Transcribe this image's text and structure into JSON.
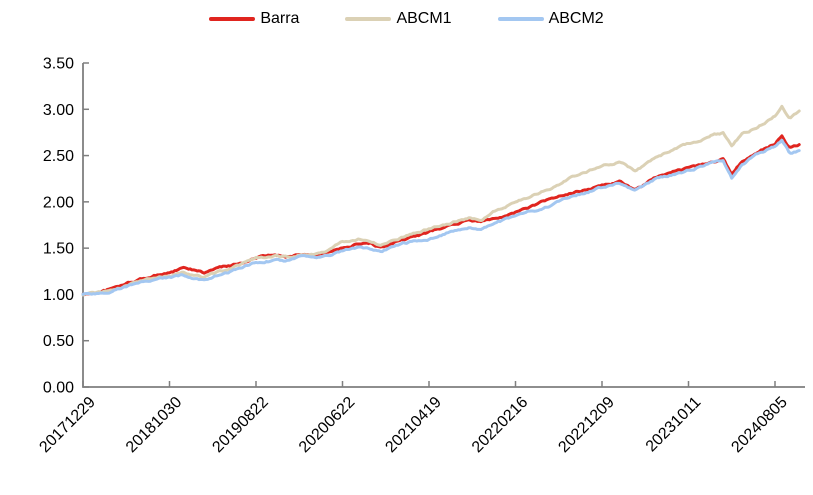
{
  "legend": {
    "items": [
      {
        "label": "Barra",
        "color": "#e0251f"
      },
      {
        "label": "ABCM1",
        "color": "#dbd1b5"
      },
      {
        "label": "ABCM2",
        "color": "#a3c7f1"
      }
    ],
    "position": "top-center"
  },
  "axis": {
    "color": "#7f7f7f",
    "tick_length": 6,
    "label_color": "#000000"
  },
  "chart_data": {
    "type": "line",
    "title": "",
    "xlabel": "",
    "ylabel": "",
    "ylim": [
      0,
      3.5
    ],
    "xlim": [
      0,
      8.35
    ],
    "grid": false,
    "legend_position": "top-center",
    "y_tick_values": [
      0.0,
      0.5,
      1.0,
      1.5,
      2.0,
      2.5,
      3.0,
      3.5
    ],
    "y_tick_labels": [
      "0.00",
      "0.50",
      "1.00",
      "1.50",
      "2.00",
      "2.50",
      "3.00",
      "3.50"
    ],
    "x_tick_units": [
      0,
      1,
      2,
      3,
      4,
      5,
      6,
      7,
      8
    ],
    "x_tick_labels": [
      "20171229",
      "20181030",
      "20190822",
      "20200622",
      "20210419",
      "20220216",
      "20221209",
      "20231011",
      "20240805"
    ],
    "series": [
      {
        "name": "Barra",
        "color": "#e0251f",
        "points": [
          [
            0,
            1.0
          ],
          [
            0.1,
            1.01
          ],
          [
            0.25,
            1.04
          ],
          [
            0.4,
            1.08
          ],
          [
            0.55,
            1.13
          ],
          [
            0.7,
            1.17
          ],
          [
            0.85,
            1.21
          ],
          [
            1.0,
            1.24
          ],
          [
            1.15,
            1.28
          ],
          [
            1.28,
            1.26
          ],
          [
            1.4,
            1.23
          ],
          [
            1.55,
            1.28
          ],
          [
            1.7,
            1.31
          ],
          [
            1.85,
            1.35
          ],
          [
            2.0,
            1.4
          ],
          [
            2.2,
            1.42
          ],
          [
            2.35,
            1.41
          ],
          [
            2.5,
            1.44
          ],
          [
            2.65,
            1.43
          ],
          [
            2.8,
            1.45
          ],
          [
            3.0,
            1.51
          ],
          [
            3.2,
            1.56
          ],
          [
            3.32,
            1.55
          ],
          [
            3.45,
            1.49
          ],
          [
            3.6,
            1.56
          ],
          [
            3.8,
            1.61
          ],
          [
            4.0,
            1.67
          ],
          [
            4.2,
            1.73
          ],
          [
            4.45,
            1.8
          ],
          [
            4.6,
            1.78
          ],
          [
            4.8,
            1.84
          ],
          [
            5.0,
            1.89
          ],
          [
            5.3,
            1.99
          ],
          [
            5.6,
            2.08
          ],
          [
            5.8,
            2.13
          ],
          [
            6.0,
            2.18
          ],
          [
            6.2,
            2.21
          ],
          [
            6.38,
            2.13
          ],
          [
            6.6,
            2.25
          ],
          [
            6.8,
            2.31
          ],
          [
            7.0,
            2.36
          ],
          [
            7.27,
            2.43
          ],
          [
            7.4,
            2.46
          ],
          [
            7.5,
            2.29
          ],
          [
            7.62,
            2.44
          ],
          [
            7.8,
            2.55
          ],
          [
            8.0,
            2.63
          ],
          [
            8.08,
            2.72
          ],
          [
            8.17,
            2.59
          ],
          [
            8.28,
            2.62
          ]
        ]
      },
      {
        "name": "ABCM1",
        "color": "#dbd1b5",
        "points": [
          [
            0,
            1.0
          ],
          [
            0.1,
            1.01
          ],
          [
            0.25,
            1.03
          ],
          [
            0.4,
            1.07
          ],
          [
            0.55,
            1.11
          ],
          [
            0.7,
            1.15
          ],
          [
            0.85,
            1.18
          ],
          [
            1.0,
            1.2
          ],
          [
            1.15,
            1.24
          ],
          [
            1.4,
            1.19
          ],
          [
            1.55,
            1.24
          ],
          [
            1.7,
            1.28
          ],
          [
            1.85,
            1.33
          ],
          [
            2.0,
            1.39
          ],
          [
            2.2,
            1.41
          ],
          [
            2.35,
            1.4
          ],
          [
            2.5,
            1.43
          ],
          [
            2.65,
            1.43
          ],
          [
            2.8,
            1.46
          ],
          [
            3.0,
            1.57
          ],
          [
            3.2,
            1.6
          ],
          [
            3.45,
            1.53
          ],
          [
            3.6,
            1.6
          ],
          [
            3.8,
            1.66
          ],
          [
            4.0,
            1.72
          ],
          [
            4.2,
            1.77
          ],
          [
            4.45,
            1.83
          ],
          [
            4.6,
            1.82
          ],
          [
            4.8,
            1.92
          ],
          [
            5.0,
            2.0
          ],
          [
            5.3,
            2.11
          ],
          [
            5.6,
            2.24
          ],
          [
            5.8,
            2.32
          ],
          [
            6.0,
            2.4
          ],
          [
            6.2,
            2.43
          ],
          [
            6.38,
            2.33
          ],
          [
            6.6,
            2.47
          ],
          [
            6.8,
            2.55
          ],
          [
            7.0,
            2.62
          ],
          [
            7.27,
            2.72
          ],
          [
            7.4,
            2.74
          ],
          [
            7.5,
            2.6
          ],
          [
            7.62,
            2.73
          ],
          [
            7.8,
            2.81
          ],
          [
            8.0,
            2.94
          ],
          [
            8.08,
            3.04
          ],
          [
            8.17,
            2.91
          ],
          [
            8.28,
            2.99
          ]
        ]
      },
      {
        "name": "ABCM2",
        "color": "#a3c7f1",
        "points": [
          [
            0,
            1.0
          ],
          [
            0.1,
            1.0
          ],
          [
            0.25,
            1.02
          ],
          [
            0.4,
            1.06
          ],
          [
            0.55,
            1.1
          ],
          [
            0.7,
            1.14
          ],
          [
            0.85,
            1.16
          ],
          [
            1.0,
            1.18
          ],
          [
            1.15,
            1.21
          ],
          [
            1.4,
            1.16
          ],
          [
            1.55,
            1.21
          ],
          [
            1.7,
            1.25
          ],
          [
            1.85,
            1.3
          ],
          [
            2.0,
            1.34
          ],
          [
            2.2,
            1.37
          ],
          [
            2.35,
            1.36
          ],
          [
            2.5,
            1.39
          ],
          [
            2.65,
            1.39
          ],
          [
            2.8,
            1.41
          ],
          [
            3.0,
            1.47
          ],
          [
            3.2,
            1.51
          ],
          [
            3.45,
            1.45
          ],
          [
            3.6,
            1.52
          ],
          [
            3.8,
            1.57
          ],
          [
            4.0,
            1.61
          ],
          [
            4.2,
            1.67
          ],
          [
            4.45,
            1.73
          ],
          [
            4.6,
            1.71
          ],
          [
            4.8,
            1.78
          ],
          [
            5.0,
            1.83
          ],
          [
            5.3,
            1.93
          ],
          [
            5.6,
            2.04
          ],
          [
            5.8,
            2.1
          ],
          [
            6.0,
            2.16
          ],
          [
            6.2,
            2.2
          ],
          [
            6.38,
            2.12
          ],
          [
            6.6,
            2.23
          ],
          [
            6.8,
            2.29
          ],
          [
            7.0,
            2.34
          ],
          [
            7.27,
            2.42
          ],
          [
            7.4,
            2.44
          ],
          [
            7.5,
            2.26
          ],
          [
            7.62,
            2.41
          ],
          [
            7.8,
            2.51
          ],
          [
            8.0,
            2.59
          ],
          [
            8.08,
            2.66
          ],
          [
            8.17,
            2.52
          ],
          [
            8.28,
            2.55
          ]
        ]
      }
    ]
  }
}
